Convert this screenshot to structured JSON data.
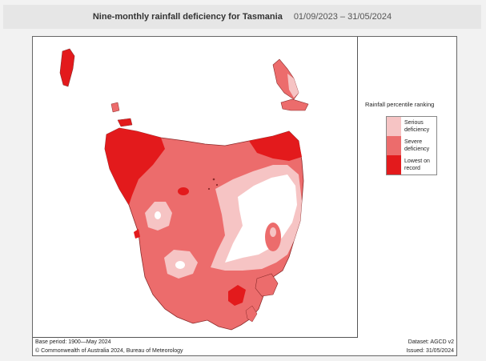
{
  "header": {
    "title": "Nine-monthly rainfall deficiency for Tasmania",
    "period": "01/09/2023 – 31/05/2024"
  },
  "legend": {
    "title": "Rainfall percentile ranking",
    "items": [
      {
        "label": "Serious deficiency",
        "color": "#f6c4c4"
      },
      {
        "label": "Severe deficiency",
        "color": "#ec6c6c"
      },
      {
        "label": "Lowest on record",
        "color": "#e31a1c"
      }
    ]
  },
  "footer": {
    "base_period": "Base period: 1900—May 2024",
    "dataset": "Dataset: AGCD v2",
    "copyright": "© Commonwealth of Australia 2024, Bureau of Meteorology",
    "issued": "Issued: 31/05/2024"
  },
  "colors": {
    "serious": "#f6c4c4",
    "severe": "#ec6c6c",
    "lowest": "#e31a1c",
    "none": "#ffffff",
    "coast": "#8a2a2a"
  }
}
